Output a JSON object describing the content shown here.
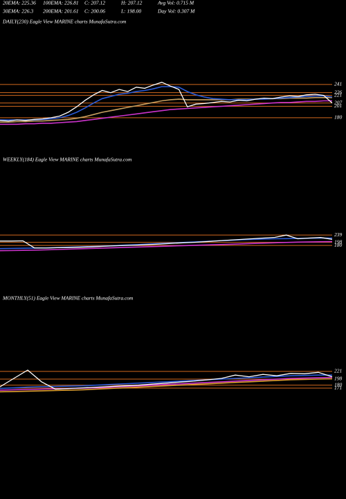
{
  "header": {
    "rows": [
      [
        "20EMA: 225.36",
        "100EMA: 226.81",
        "C: 207.12",
        "H: 207.12",
        "Avg Vol: 0.715 M"
      ],
      [
        "30EMA: 226.3",
        "200EMA: 201.61",
        "C: 200.06",
        "L: 198.00",
        "Day Vol: 0.307 M"
      ]
    ]
  },
  "chart_data": [
    {
      "type": "line",
      "title": "DAILY(230) Eagle   View  MARINE charts MunafaSutra.com",
      "ylim": [
        110,
        345
      ],
      "level_color": "#d2691e",
      "levels": [
        241,
        226,
        221,
        207,
        201,
        180
      ],
      "series": [
        {
          "color": "#cc33cc",
          "values": [
            168,
            168,
            168,
            169,
            169,
            170,
            170,
            171,
            172,
            173,
            175,
            177,
            179,
            181,
            183,
            185,
            187,
            189,
            191,
            193,
            195,
            196,
            197,
            198,
            199,
            200,
            201,
            202,
            203,
            204,
            205,
            206,
            207,
            208,
            208,
            209,
            210,
            210,
            211,
            211
          ]
        },
        {
          "color": "#c8a060",
          "values": [
            172,
            172,
            173,
            173,
            174,
            174,
            175,
            176,
            177,
            179,
            182,
            186,
            190,
            193,
            196,
            199,
            202,
            205,
            208,
            211,
            213,
            214,
            213,
            213,
            213,
            213,
            213,
            213,
            214,
            214,
            214,
            215,
            215,
            215,
            216,
            216,
            216,
            217,
            217,
            217
          ]
        },
        {
          "color": "#2b5bd7",
          "values": [
            176,
            176,
            176,
            176,
            176,
            177,
            178,
            180,
            184,
            190,
            198,
            207,
            215,
            219,
            223,
            225,
            228,
            230,
            233,
            237,
            237,
            236,
            228,
            222,
            218,
            215,
            214,
            213,
            213,
            213,
            214,
            214,
            215,
            216,
            217,
            218,
            219,
            220,
            220,
            218
          ]
        },
        {
          "color": "#ffffff",
          "values": [
            175,
            174,
            176,
            175,
            177,
            178,
            180,
            183,
            190,
            200,
            212,
            222,
            230,
            226,
            232,
            228,
            236,
            234,
            240,
            245,
            238,
            232,
            200,
            205,
            206,
            208,
            210,
            209,
            212,
            211,
            214,
            216,
            215,
            218,
            220,
            219,
            222,
            223,
            221,
            207
          ]
        }
      ]
    },
    {
      "type": "line",
      "title": "WEEKLY(184) Eagle   View  MARINE charts MunafaSutra.com",
      "ylim": [
        -80,
        670
      ],
      "level_color": "#d2691e",
      "levels": [
        239,
        198,
        180
      ],
      "series": [
        {
          "color": "#cc33cc",
          "values": [
            150,
            151,
            152,
            153,
            155,
            157,
            159,
            161,
            163,
            165,
            167,
            169,
            171,
            173,
            175,
            177,
            179,
            181,
            183,
            185,
            187,
            189,
            191,
            193,
            195,
            197,
            199,
            200,
            201,
            202
          ]
        },
        {
          "color": "#2b5bd7",
          "values": [
            162,
            163,
            164,
            165,
            166,
            168,
            170,
            172,
            174,
            176,
            179,
            182,
            185,
            188,
            191,
            194,
            197,
            200,
            203,
            206,
            209,
            212,
            214,
            216,
            218,
            219,
            220,
            221,
            222,
            222
          ]
        },
        {
          "color": "#ffffff",
          "values": [
            205,
            205,
            206,
            166,
            165,
            167,
            168,
            170,
            172,
            175,
            178,
            180,
            182,
            185,
            188,
            192,
            195,
            198,
            202,
            206,
            210,
            214,
            218,
            222,
            226,
            239,
            218,
            222,
            225,
            215
          ]
        }
      ]
    },
    {
      "type": "line",
      "title": "MONTHLY(51) Eagle   View  MARINE charts MunafaSutra.com",
      "ylim": [
        -150,
        430
      ],
      "level_color": "#d2691e",
      "levels": [
        221,
        198,
        180,
        171
      ],
      "series": [
        {
          "color": "#e0a030",
          "values": [
            160,
            161,
            162,
            163,
            164,
            165,
            166,
            168,
            170,
            172,
            174,
            176,
            178,
            180,
            182,
            184,
            186,
            188,
            190,
            192,
            194,
            196,
            197,
            198,
            199
          ]
        },
        {
          "color": "#cc33cc",
          "values": [
            165,
            166,
            167,
            168,
            169,
            170,
            171,
            172,
            174,
            176,
            178,
            180,
            182,
            184,
            186,
            188,
            190,
            192,
            194,
            196,
            198,
            200,
            201,
            202,
            203
          ]
        },
        {
          "color": "#2b5bd7",
          "values": [
            170,
            172,
            174,
            175,
            176,
            177,
            178,
            180,
            182,
            184,
            186,
            188,
            190,
            192,
            194,
            196,
            198,
            200,
            202,
            204,
            206,
            208,
            209,
            210,
            210
          ]
        },
        {
          "color": "#ffffff",
          "values": [
            175,
            200,
            225,
            190,
            168,
            170,
            172,
            174,
            176,
            178,
            180,
            183,
            186,
            189,
            192,
            196,
            200,
            210,
            205,
            212,
            208,
            215,
            214,
            218,
            205
          ]
        }
      ]
    }
  ]
}
